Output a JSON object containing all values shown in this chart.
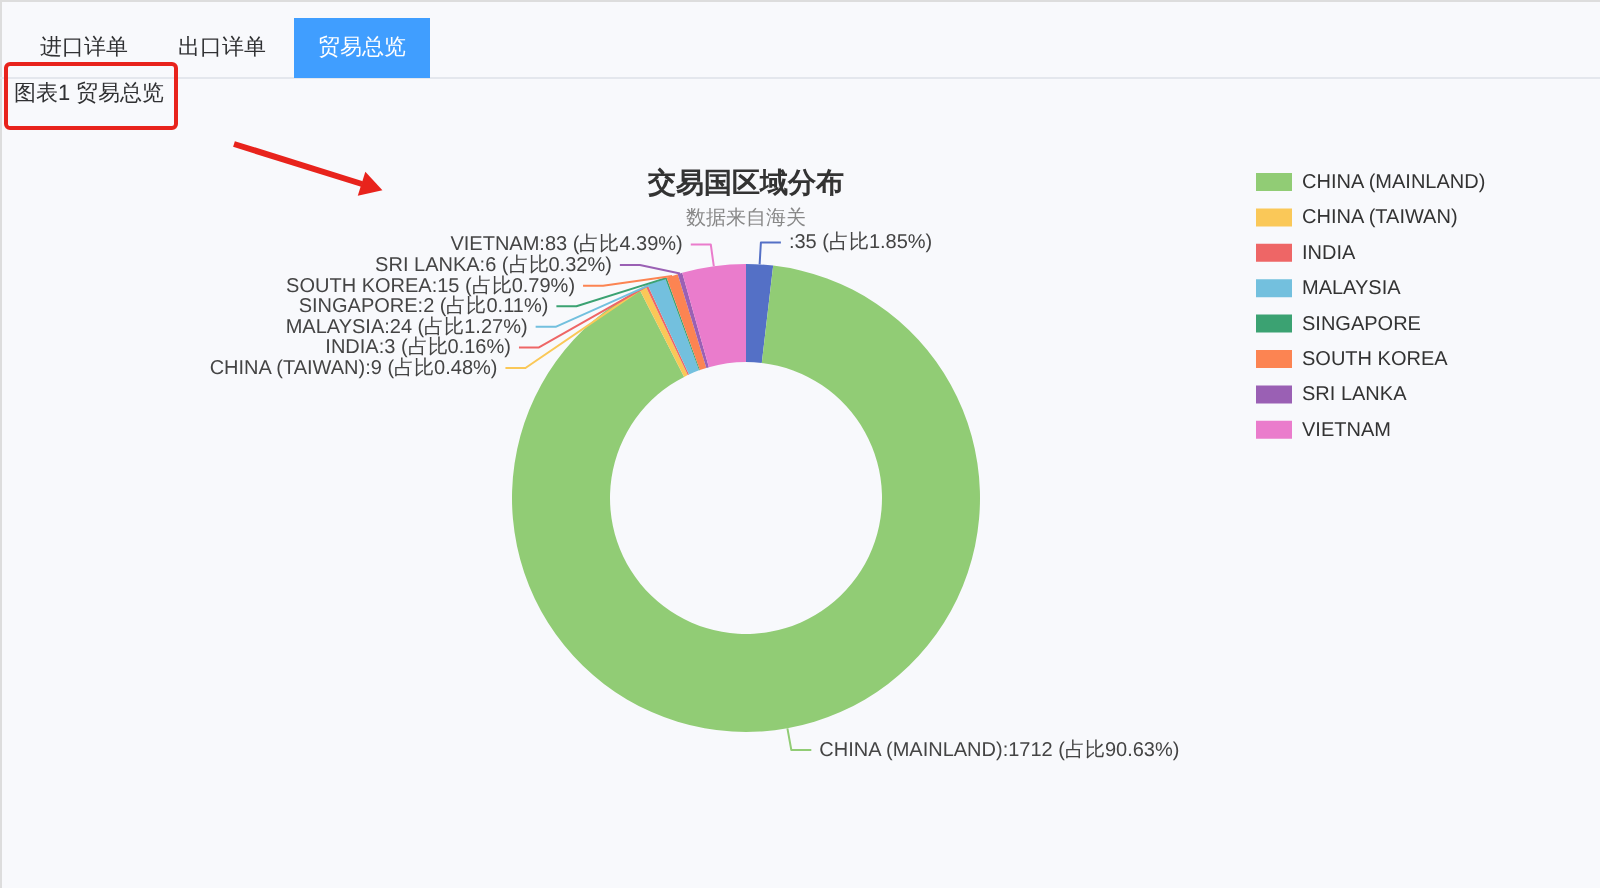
{
  "chart_data": {
    "type": "donut",
    "title": "交易国区域分布",
    "subtitle": "数据来自海关",
    "categories": [
      null,
      "CHINA (MAINLAND)",
      "CHINA (TAIWAN)",
      "INDIA",
      "MALAYSIA",
      "SINGAPORE",
      "SOUTH KOREA",
      "SRI LANKA",
      "VIETNAM"
    ],
    "values": [
      35,
      1712,
      9,
      3,
      24,
      2,
      15,
      6,
      83
    ],
    "colors": [
      "#5470c6",
      "#91cc75",
      "#fac858",
      "#ee6666",
      "#73c0de",
      "#3ba272",
      "#fc8452",
      "#9a60b4",
      "#ea7ccc"
    ],
    "value_labels": [
      ":35 (占比1.85%)",
      "CHINA (MAINLAND):1712 (占比90.63%)",
      "CHINA (TAIWAN):9 (占比0.48%)",
      "INDIA:3 (占比0.16%)",
      "MALAYSIA:24 (占比1.27%)",
      "SINGAPORE:2 (占比0.11%)",
      "SOUTH KOREA:15 (占比0.79%)",
      "SRI LANKA:6 (占比0.32%)",
      "VIETNAM:83 (占比4.39%)"
    ],
    "legend": "top right",
    "annotations": [
      "进口详单",
      "出口详单",
      "贸易总览",
      "图表1 贸易总览"
    ]
  }
}
